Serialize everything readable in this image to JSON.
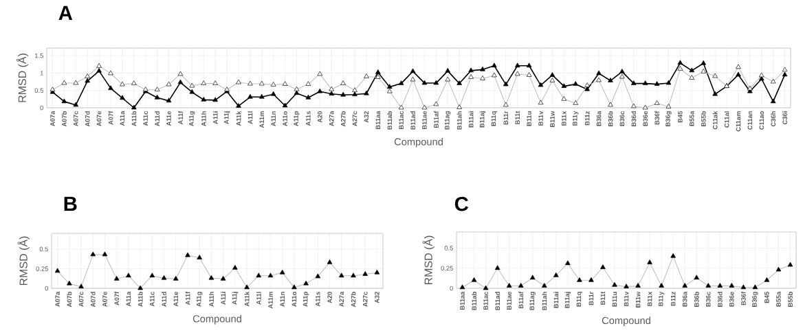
{
  "chart_data": [
    {
      "type": "line",
      "title": "A",
      "xlabel": "Compound",
      "ylabel": "RMSD (Å)",
      "grid": true,
      "marker": "triangle",
      "ylim": [
        0,
        1.72
      ],
      "yticks": [
        0,
        0.5,
        1,
        1.5
      ],
      "categories": [
        "A07a",
        "A07b",
        "A07c",
        "A07d",
        "A07e",
        "A07f",
        "A11a",
        "A11b",
        "A11c",
        "A11d",
        "A11e",
        "A11f",
        "A11g",
        "A11h",
        "A11i",
        "A11j",
        "A11k",
        "A11l",
        "A11m",
        "A11n",
        "A11o",
        "A11p",
        "A11s",
        "A20",
        "A27a",
        "A27b",
        "A27c",
        "A32",
        "B11aa",
        "B11ab",
        "B11ac",
        "B11ad",
        "B11ae",
        "B11af",
        "B11ag",
        "B11ah",
        "B11ai",
        "B11aj",
        "B11q",
        "B11r",
        "B11t",
        "B11u",
        "B11v",
        "B11w",
        "B11x",
        "B11y",
        "B11z",
        "B36a",
        "B36b",
        "B36c",
        "B36d",
        "B36e",
        "B36f",
        "B36g",
        "B45",
        "B55a",
        "B55b",
        "C11ak",
        "C11al",
        "C11am",
        "C11an",
        "C11ao",
        "C36h",
        "C36i"
      ],
      "series": [
        {
          "color": "#000000",
          "values": [
            0.45,
            0.18,
            0.08,
            0.77,
            1.06,
            0.56,
            0.28,
            0,
            0.47,
            0.29,
            0.2,
            0.73,
            0.45,
            0.23,
            0.22,
            0.47,
            0.05,
            0.31,
            0.31,
            0.39,
            0.06,
            0.42,
            0.29,
            0.47,
            0.4,
            0.37,
            0.38,
            0.41,
            1.02,
            0.6,
            0.7,
            1.05,
            0.71,
            0.71,
            1.06,
            0.7,
            1.07,
            1.1,
            1.21,
            0.67,
            1.21,
            1.21,
            0.65,
            0.94,
            0.62,
            0.68,
            0.53,
            0.99,
            0.78,
            1.04,
            0.7,
            0.7,
            0.68,
            0.71,
            1.29,
            1.07,
            1.28,
            0.39,
            0.62,
            0.95,
            0.47,
            0.83,
            0.18,
            0.95
          ]
        },
        {
          "color": "#ffffff",
          "values": [
            0.52,
            0.71,
            0.71,
            0.9,
            1.2,
            0.99,
            0.67,
            0.7,
            0.52,
            0.52,
            0.67,
            0.97,
            0.63,
            0.7,
            0.7,
            0.52,
            0.73,
            0.69,
            0.69,
            0.66,
            0.68,
            0.53,
            0.68,
            0.97,
            0.53,
            0.7,
            0.5,
            0.9,
            0.88,
            0.47,
            0,
            0.81,
            0,
            0.1,
            0.81,
            0.01,
            0.88,
            0.84,
            0.93,
            0.08,
            0.97,
            0.94,
            0.14,
            0.78,
            0.25,
            0.13,
            0.64,
            0.79,
            0.08,
            0.89,
            0.04,
            0,
            0.13,
            0.03,
            1.12,
            0.86,
            1.04,
            0.91,
            0.62,
            1.17,
            0.55,
            0.93,
            0.75,
            1.09
          ]
        }
      ]
    },
    {
      "type": "line",
      "title": "B",
      "xlabel": "Compound",
      "ylabel": "RMSD (Å)",
      "grid": true,
      "marker": "triangle",
      "ylim": [
        0,
        0.7
      ],
      "yticks": [
        0,
        0.25,
        0.5
      ],
      "categories": [
        "A07a",
        "A07b",
        "A07c",
        "A07d",
        "A07e",
        "A07f",
        "A11a",
        "A11b",
        "A11c",
        "A11d",
        "A11e",
        "A11f",
        "A11g",
        "A11h",
        "A11i",
        "A11j",
        "A11k",
        "A11l",
        "A11m",
        "A11n",
        "A11o",
        "A11p",
        "A11s",
        "A20",
        "A27a",
        "A27b",
        "A27c",
        "A32"
      ],
      "series": [
        {
          "color": "#000000",
          "values": [
            0.22,
            0.06,
            0.02,
            0.43,
            0.43,
            0.12,
            0.16,
            0,
            0.16,
            0.13,
            0.12,
            0.42,
            0.39,
            0.13,
            0.12,
            0.26,
            0.01,
            0.16,
            0.16,
            0.2,
            0.01,
            0.06,
            0.15,
            0.33,
            0.16,
            0.16,
            0.18,
            0.2
          ]
        }
      ]
    },
    {
      "type": "line",
      "title": "C",
      "xlabel": "Compound",
      "ylabel": "RMSD (Å)",
      "grid": true,
      "marker": "triangle",
      "ylim": [
        0,
        0.7
      ],
      "yticks": [
        0,
        0.25,
        0.5
      ],
      "categories": [
        "B11aa",
        "B11ab",
        "B11ac",
        "B11ad",
        "B11ae",
        "B11af",
        "B11ag",
        "B11ah",
        "B11ai",
        "B11aj",
        "B11q",
        "B11r",
        "B11t",
        "B11u",
        "B11v",
        "B11w",
        "B11x",
        "B11y",
        "B11z",
        "B36a",
        "B36b",
        "B36c",
        "B36d",
        "B36e",
        "B36f",
        "B36g",
        "B45",
        "B55a",
        "B55b"
      ],
      "series": [
        {
          "color": "#000000",
          "values": [
            0.01,
            0.1,
            0,
            0.25,
            0.03,
            0.03,
            0.13,
            0.03,
            0.16,
            0.31,
            0.1,
            0.1,
            0.26,
            0.04,
            0.02,
            0.03,
            0.32,
            0.03,
            0.4,
            0.03,
            0.13,
            0.03,
            0.03,
            0.03,
            0.01,
            0.01,
            0.1,
            0.23,
            0.29
          ]
        }
      ]
    }
  ]
}
